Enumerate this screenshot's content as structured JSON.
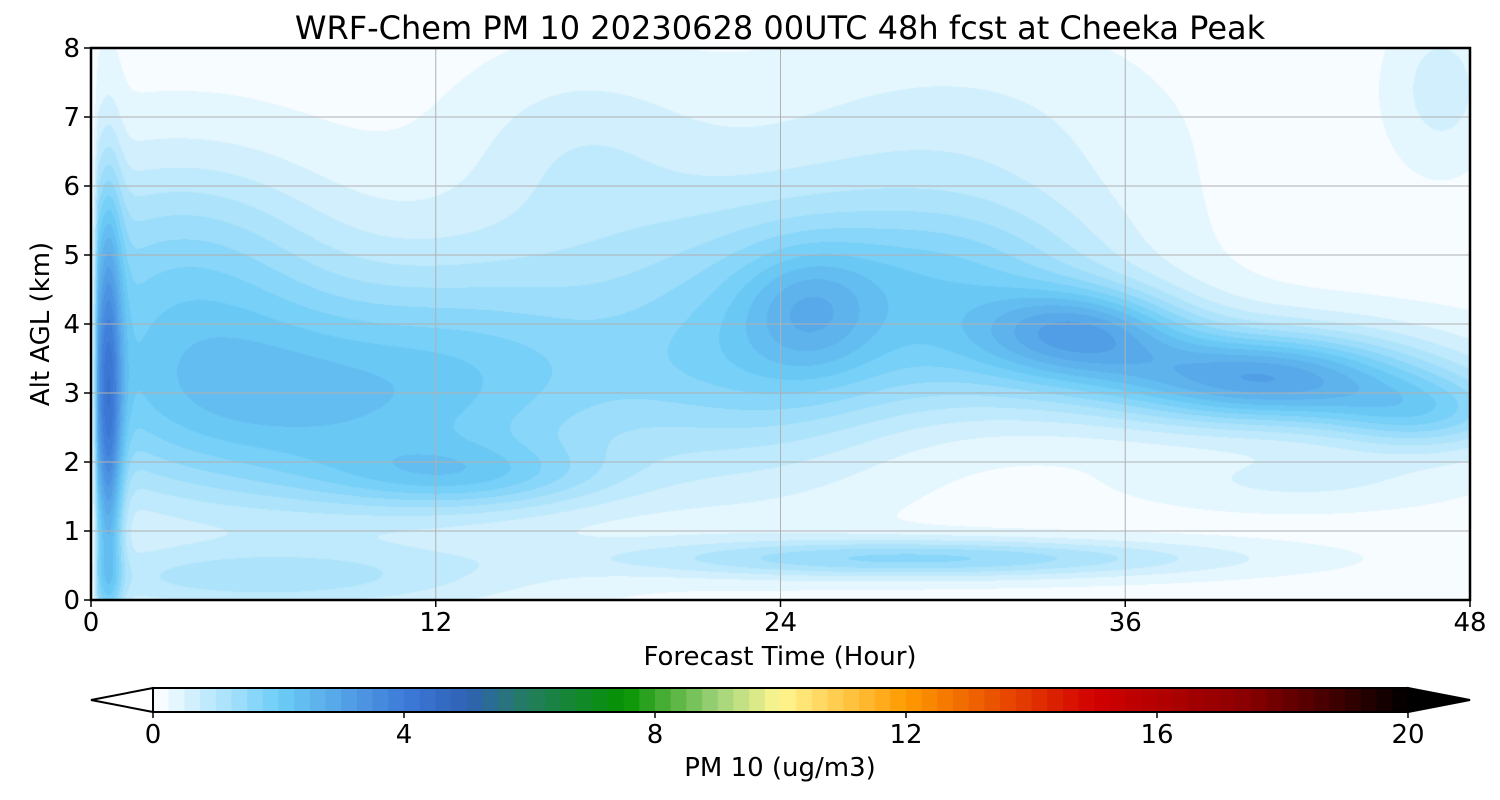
{
  "chart_data": {
    "type": "heatmap",
    "title": "WRF-Chem PM 10  20230628 00UTC 48h fcst at Cheeka Peak",
    "xlabel": "Forecast Time (Hour)",
    "ylabel": "Alt AGL (km)",
    "xlim": [
      0,
      48
    ],
    "ylim": [
      0,
      8
    ],
    "x_ticks": [
      "0",
      "12",
      "24",
      "36",
      "48"
    ],
    "y_ticks": [
      "0",
      "1",
      "2",
      "3",
      "4",
      "5",
      "6",
      "7",
      "8"
    ],
    "grid": true,
    "field_blobs": [
      {
        "x": 0.6,
        "y": 2.6,
        "sx": 0.35,
        "sy": 2.2,
        "value": 2.6
      },
      {
        "x": 6,
        "y": 2.8,
        "sx": 6,
        "sy": 1.1,
        "value": 1.9
      },
      {
        "x": 3,
        "y": 4.8,
        "sx": 4,
        "sy": 1.2,
        "value": 1.3
      },
      {
        "x": 13,
        "y": 1.8,
        "sx": 3.5,
        "sy": 0.35,
        "value": 1.0
      },
      {
        "x": 14,
        "y": 3.5,
        "sx": 4,
        "sy": 1.3,
        "value": 1.0
      },
      {
        "x": 23,
        "y": 3.8,
        "sx": 4,
        "sy": 1.4,
        "value": 1.4
      },
      {
        "x": 25,
        "y": 4.2,
        "sx": 1.6,
        "sy": 0.6,
        "value": 0.8
      },
      {
        "x": 30,
        "y": 4.6,
        "sx": 4,
        "sy": 0.8,
        "value": 1.3
      },
      {
        "x": 34.5,
        "y": 3.9,
        "sx": 2.5,
        "sy": 0.45,
        "value": 1.8
      },
      {
        "x": 41,
        "y": 3.2,
        "sx": 3.5,
        "sy": 0.45,
        "value": 2.0
      },
      {
        "x": 46.5,
        "y": 2.7,
        "sx": 2.5,
        "sy": 0.4,
        "value": 1.3
      },
      {
        "x": 36,
        "y": 3.3,
        "sx": 8,
        "sy": 0.6,
        "value": 1.0
      },
      {
        "x": 29,
        "y": 0.6,
        "sx": 7,
        "sy": 0.2,
        "value": 1.4
      },
      {
        "x": 6,
        "y": 0.3,
        "sx": 6,
        "sy": 0.35,
        "value": 0.9
      },
      {
        "x": 17,
        "y": 6.5,
        "sx": 3,
        "sy": 1,
        "value": 0.5
      },
      {
        "x": 30,
        "y": 6.5,
        "sx": 5,
        "sy": 1.2,
        "value": 0.5
      },
      {
        "x": 47,
        "y": 7.4,
        "sx": 1.3,
        "sy": 0.8,
        "value": 0.5
      },
      {
        "x": 42,
        "y": 1.7,
        "sx": 4,
        "sy": 0.3,
        "value": 0.4
      }
    ],
    "colorbar": {
      "label": "PM 10  (ug/m3)",
      "range": [
        0,
        20
      ],
      "ticks": [
        "0",
        "4",
        "8",
        "12",
        "16",
        "20"
      ],
      "levels": 80,
      "extend": "both",
      "stops": [
        {
          "v": 0,
          "c": "#ffffff"
        },
        {
          "v": 2,
          "c": "#6dcdf7"
        },
        {
          "v": 4,
          "c": "#3d7ad8"
        },
        {
          "v": 5,
          "c": "#2f62b5"
        },
        {
          "v": 6,
          "c": "#237d5c"
        },
        {
          "v": 7.5,
          "c": "#049200"
        },
        {
          "v": 9,
          "c": "#9fd27a"
        },
        {
          "v": 10,
          "c": "#fff690"
        },
        {
          "v": 12,
          "c": "#ff9a00"
        },
        {
          "v": 15,
          "c": "#d20000"
        },
        {
          "v": 17.5,
          "c": "#870000"
        },
        {
          "v": 20,
          "c": "#000000"
        }
      ]
    }
  }
}
